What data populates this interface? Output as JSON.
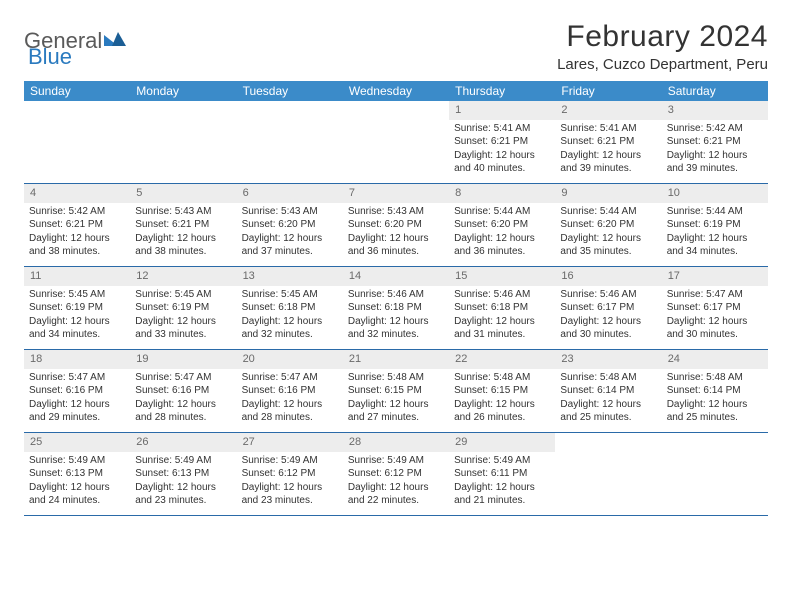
{
  "logo": {
    "part1": "General",
    "part2": "Blue"
  },
  "title": "February 2024",
  "location": "Lares, Cuzco Department, Peru",
  "colors": {
    "header_bg": "#3b8bc9",
    "week_border": "#2a6aa8",
    "daynum_bg": "#ededed",
    "daynum_color": "#6a6a6a",
    "text": "#333333",
    "logo_gray": "#5a5a5a",
    "logo_blue": "#2a7abf"
  },
  "weekdays": [
    "Sunday",
    "Monday",
    "Tuesday",
    "Wednesday",
    "Thursday",
    "Friday",
    "Saturday"
  ],
  "weeks": [
    [
      {
        "day": "",
        "lines": []
      },
      {
        "day": "",
        "lines": []
      },
      {
        "day": "",
        "lines": []
      },
      {
        "day": "",
        "lines": []
      },
      {
        "day": "1",
        "lines": [
          "Sunrise: 5:41 AM",
          "Sunset: 6:21 PM",
          "Daylight: 12 hours and 40 minutes."
        ]
      },
      {
        "day": "2",
        "lines": [
          "Sunrise: 5:41 AM",
          "Sunset: 6:21 PM",
          "Daylight: 12 hours and 39 minutes."
        ]
      },
      {
        "day": "3",
        "lines": [
          "Sunrise: 5:42 AM",
          "Sunset: 6:21 PM",
          "Daylight: 12 hours and 39 minutes."
        ]
      }
    ],
    [
      {
        "day": "4",
        "lines": [
          "Sunrise: 5:42 AM",
          "Sunset: 6:21 PM",
          "Daylight: 12 hours and 38 minutes."
        ]
      },
      {
        "day": "5",
        "lines": [
          "Sunrise: 5:43 AM",
          "Sunset: 6:21 PM",
          "Daylight: 12 hours and 38 minutes."
        ]
      },
      {
        "day": "6",
        "lines": [
          "Sunrise: 5:43 AM",
          "Sunset: 6:20 PM",
          "Daylight: 12 hours and 37 minutes."
        ]
      },
      {
        "day": "7",
        "lines": [
          "Sunrise: 5:43 AM",
          "Sunset: 6:20 PM",
          "Daylight: 12 hours and 36 minutes."
        ]
      },
      {
        "day": "8",
        "lines": [
          "Sunrise: 5:44 AM",
          "Sunset: 6:20 PM",
          "Daylight: 12 hours and 36 minutes."
        ]
      },
      {
        "day": "9",
        "lines": [
          "Sunrise: 5:44 AM",
          "Sunset: 6:20 PM",
          "Daylight: 12 hours and 35 minutes."
        ]
      },
      {
        "day": "10",
        "lines": [
          "Sunrise: 5:44 AM",
          "Sunset: 6:19 PM",
          "Daylight: 12 hours and 34 minutes."
        ]
      }
    ],
    [
      {
        "day": "11",
        "lines": [
          "Sunrise: 5:45 AM",
          "Sunset: 6:19 PM",
          "Daylight: 12 hours and 34 minutes."
        ]
      },
      {
        "day": "12",
        "lines": [
          "Sunrise: 5:45 AM",
          "Sunset: 6:19 PM",
          "Daylight: 12 hours and 33 minutes."
        ]
      },
      {
        "day": "13",
        "lines": [
          "Sunrise: 5:45 AM",
          "Sunset: 6:18 PM",
          "Daylight: 12 hours and 32 minutes."
        ]
      },
      {
        "day": "14",
        "lines": [
          "Sunrise: 5:46 AM",
          "Sunset: 6:18 PM",
          "Daylight: 12 hours and 32 minutes."
        ]
      },
      {
        "day": "15",
        "lines": [
          "Sunrise: 5:46 AM",
          "Sunset: 6:18 PM",
          "Daylight: 12 hours and 31 minutes."
        ]
      },
      {
        "day": "16",
        "lines": [
          "Sunrise: 5:46 AM",
          "Sunset: 6:17 PM",
          "Daylight: 12 hours and 30 minutes."
        ]
      },
      {
        "day": "17",
        "lines": [
          "Sunrise: 5:47 AM",
          "Sunset: 6:17 PM",
          "Daylight: 12 hours and 30 minutes."
        ]
      }
    ],
    [
      {
        "day": "18",
        "lines": [
          "Sunrise: 5:47 AM",
          "Sunset: 6:16 PM",
          "Daylight: 12 hours and 29 minutes."
        ]
      },
      {
        "day": "19",
        "lines": [
          "Sunrise: 5:47 AM",
          "Sunset: 6:16 PM",
          "Daylight: 12 hours and 28 minutes."
        ]
      },
      {
        "day": "20",
        "lines": [
          "Sunrise: 5:47 AM",
          "Sunset: 6:16 PM",
          "Daylight: 12 hours and 28 minutes."
        ]
      },
      {
        "day": "21",
        "lines": [
          "Sunrise: 5:48 AM",
          "Sunset: 6:15 PM",
          "Daylight: 12 hours and 27 minutes."
        ]
      },
      {
        "day": "22",
        "lines": [
          "Sunrise: 5:48 AM",
          "Sunset: 6:15 PM",
          "Daylight: 12 hours and 26 minutes."
        ]
      },
      {
        "day": "23",
        "lines": [
          "Sunrise: 5:48 AM",
          "Sunset: 6:14 PM",
          "Daylight: 12 hours and 25 minutes."
        ]
      },
      {
        "day": "24",
        "lines": [
          "Sunrise: 5:48 AM",
          "Sunset: 6:14 PM",
          "Daylight: 12 hours and 25 minutes."
        ]
      }
    ],
    [
      {
        "day": "25",
        "lines": [
          "Sunrise: 5:49 AM",
          "Sunset: 6:13 PM",
          "Daylight: 12 hours and 24 minutes."
        ]
      },
      {
        "day": "26",
        "lines": [
          "Sunrise: 5:49 AM",
          "Sunset: 6:13 PM",
          "Daylight: 12 hours and 23 minutes."
        ]
      },
      {
        "day": "27",
        "lines": [
          "Sunrise: 5:49 AM",
          "Sunset: 6:12 PM",
          "Daylight: 12 hours and 23 minutes."
        ]
      },
      {
        "day": "28",
        "lines": [
          "Sunrise: 5:49 AM",
          "Sunset: 6:12 PM",
          "Daylight: 12 hours and 22 minutes."
        ]
      },
      {
        "day": "29",
        "lines": [
          "Sunrise: 5:49 AM",
          "Sunset: 6:11 PM",
          "Daylight: 12 hours and 21 minutes."
        ]
      },
      {
        "day": "",
        "lines": []
      },
      {
        "day": "",
        "lines": []
      }
    ]
  ]
}
